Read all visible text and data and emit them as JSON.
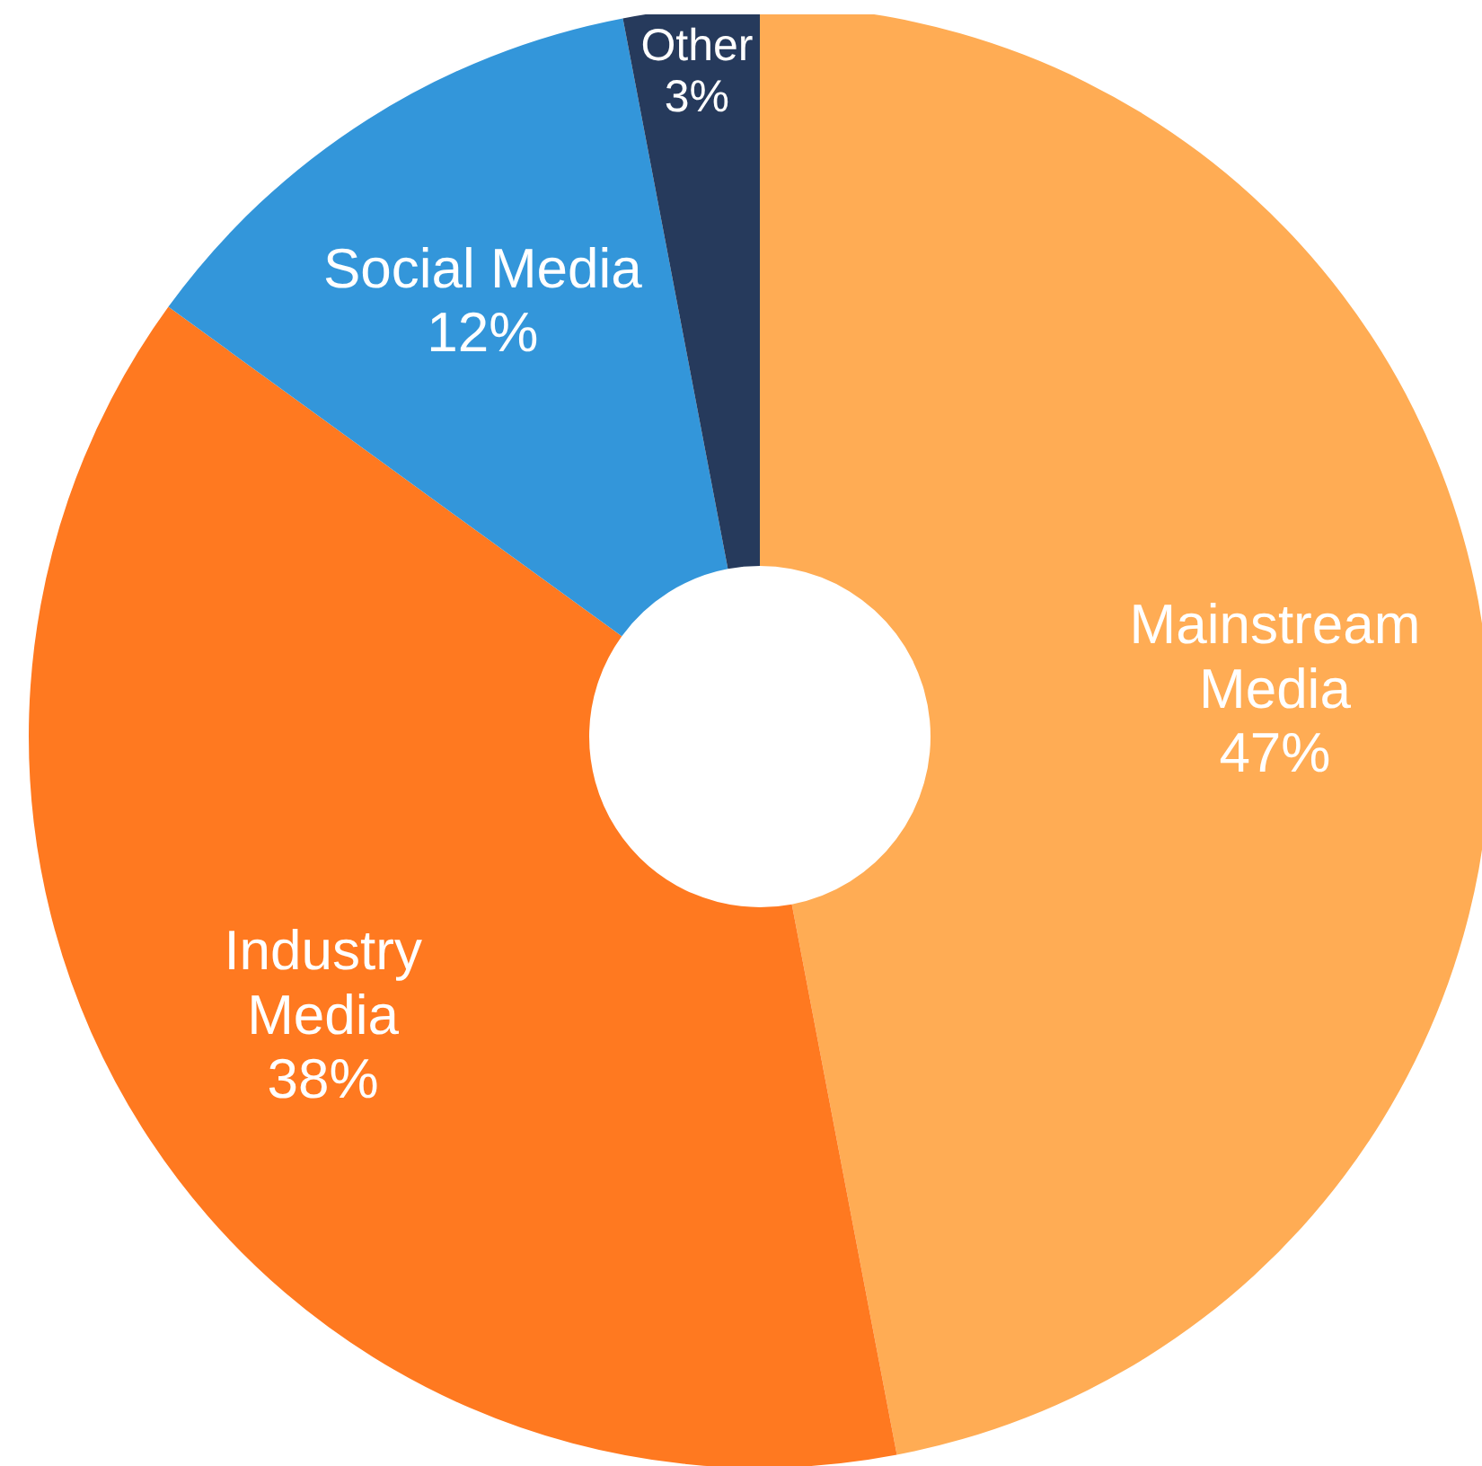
{
  "chart_data": {
    "type": "donut",
    "categories": [
      "Mainstream Media",
      "Industry Media",
      "Social Media",
      "Other"
    ],
    "values": [
      47,
      38,
      12,
      3
    ],
    "colors": [
      "#ffac54",
      "#ff7920",
      "#3396da",
      "#263a5c"
    ],
    "value_labels": [
      "47%",
      "38%",
      "12%",
      "3%"
    ]
  }
}
